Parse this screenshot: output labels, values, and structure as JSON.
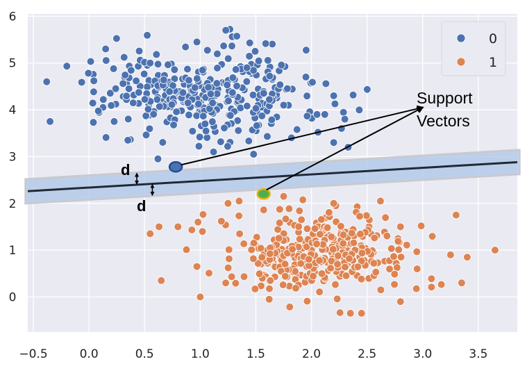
{
  "chart_data": {
    "type": "scatter",
    "title": "",
    "xlabel": "",
    "ylabel": "",
    "xlim": [
      -0.55,
      3.85
    ],
    "ylim": [
      -0.75,
      6.05
    ],
    "xticks": [
      "−0.5",
      "0.0",
      "0.5",
      "1.0",
      "1.5",
      "2.0",
      "2.5",
      "3.0",
      "3.5"
    ],
    "xtick_values": [
      -0.5,
      0.0,
      0.5,
      1.0,
      1.5,
      2.0,
      2.5,
      3.0,
      3.5
    ],
    "yticks": [
      "0",
      "1",
      "2",
      "3",
      "4",
      "5",
      "6"
    ],
    "ytick_values": [
      0,
      1,
      2,
      3,
      4,
      5,
      6
    ],
    "grid": true,
    "legend_position": "top-right",
    "series": [
      {
        "name": "0",
        "color": "#4c72b0",
        "cluster": {
          "center": [
            1.05,
            4.35
          ],
          "std": [
            0.48,
            0.5
          ],
          "count": 330,
          "seed": 7
        },
        "points": [
          [
            -0.35,
            3.75
          ],
          [
            -0.38,
            4.6
          ],
          [
            0.15,
            5.3
          ],
          [
            0.55,
            5.0
          ],
          [
            0.97,
            5.45
          ],
          [
            1.23,
            5.7
          ],
          [
            1.42,
            4.9
          ],
          [
            1.75,
            4.1
          ],
          [
            1.95,
            4.7
          ],
          [
            2.05,
            3.9
          ],
          [
            2.12,
            3.9
          ],
          [
            2.2,
            4.3
          ],
          [
            2.27,
            3.6
          ],
          [
            2.2,
            3.3
          ],
          [
            2.33,
            3.2
          ],
          [
            2.3,
            3.8
          ],
          [
            0.35,
            3.35
          ],
          [
            1.48,
            3.05
          ],
          [
            1.12,
            3.1
          ],
          [
            0.62,
            2.95
          ],
          [
            1.82,
            3.4
          ]
        ]
      },
      {
        "name": "1",
        "color": "#dd8452",
        "cluster": {
          "center": [
            2.0,
            0.95
          ],
          "std": [
            0.42,
            0.42
          ],
          "count": 330,
          "seed": 13
        },
        "points": [
          [
            0.55,
            1.35
          ],
          [
            0.65,
            0.35
          ],
          [
            0.63,
            1.5
          ],
          [
            0.8,
            1.5
          ],
          [
            1.0,
            0.0
          ],
          [
            0.97,
            0.65
          ],
          [
            0.98,
            1.6
          ],
          [
            1.02,
            1.4
          ],
          [
            1.25,
            2.0
          ],
          [
            1.35,
            2.05
          ],
          [
            1.75,
            2.15
          ],
          [
            2.2,
            2.0
          ],
          [
            2.45,
            -0.35
          ],
          [
            2.35,
            -0.35
          ],
          [
            2.62,
            2.05
          ],
          [
            2.8,
            1.5
          ],
          [
            3.3,
            1.75
          ],
          [
            3.35,
            0.3
          ],
          [
            3.4,
            0.85
          ],
          [
            3.65,
            1.0
          ],
          [
            3.25,
            0.9
          ],
          [
            2.95,
            0.6
          ],
          [
            1.62,
            -0.05
          ],
          [
            2.8,
            -0.1
          ]
        ]
      }
    ],
    "support_vectors": [
      {
        "x": 0.78,
        "y": 2.78,
        "class": "0"
      },
      {
        "x": 1.57,
        "y": 2.2,
        "class": "1"
      }
    ],
    "hyperplane": {
      "x": [
        -0.55,
        3.85
      ],
      "y": [
        2.26,
        2.88
      ]
    },
    "margin_band": {
      "half_width": 0.26,
      "color": "#aec7e8"
    },
    "annotations": {
      "support_label": [
        "Support",
        "Vectors"
      ],
      "support_label_anchor": [
        3.0,
        4.05
      ],
      "margin_label": "d"
    }
  }
}
